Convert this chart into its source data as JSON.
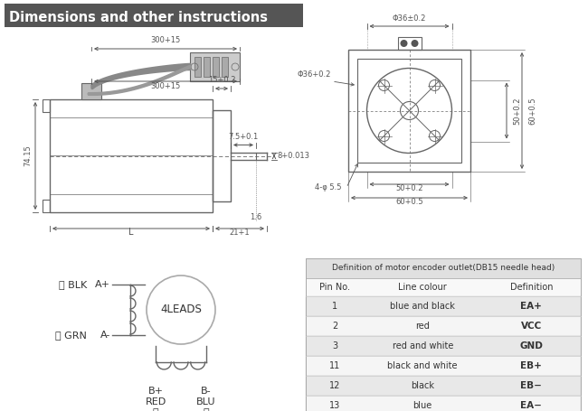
{
  "title": "Dimensions and other instructions",
  "title_bg": "#555555",
  "title_color": "#ffffff",
  "bg_color": "#ffffff",
  "table_header": "Definition of motor encoder outlet(DB15 needle head)",
  "table_cols": [
    "Pin No.",
    "Line colour",
    "Definition"
  ],
  "table_rows": [
    [
      "1",
      "blue and black",
      "EA+"
    ],
    [
      "2",
      "red",
      "VCC"
    ],
    [
      "3",
      "red and white",
      "GND"
    ],
    [
      "11",
      "black and white",
      "EB+"
    ],
    [
      "12",
      "black",
      "EB−"
    ],
    [
      "13",
      "blue",
      "EA−"
    ]
  ],
  "table_row_colors": [
    "#e8e8e8",
    "#f5f5f5",
    "#e8e8e8",
    "#f5f5f5",
    "#e8e8e8",
    "#f5f5f5"
  ],
  "line_color": "#666666",
  "text_color": "#333333",
  "dim_color": "#555555"
}
